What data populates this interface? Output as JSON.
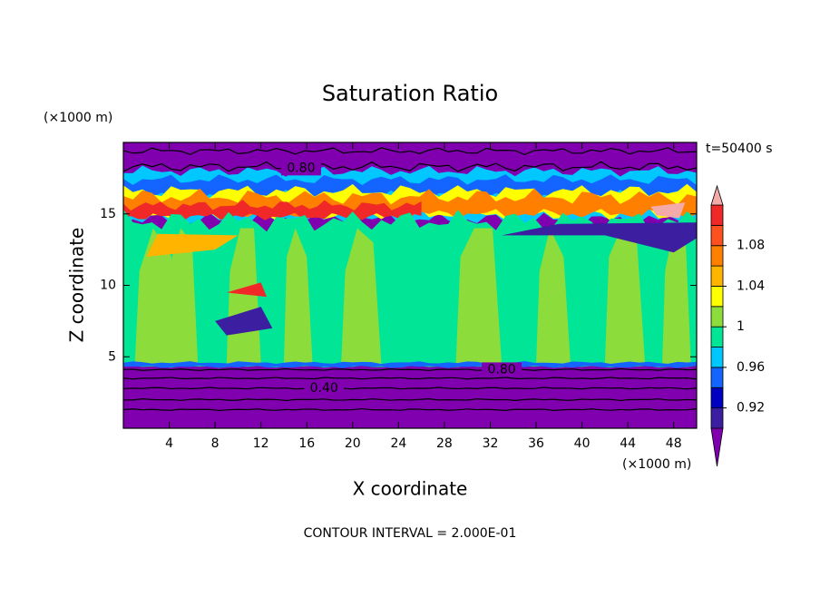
{
  "chart_data": {
    "type": "contour",
    "title": "Saturation Ratio",
    "time_label": "t=50400 s",
    "x_label": "X coordinate",
    "y_label": "Z coordinate",
    "x_unit_label": "(×1000 m)",
    "y_unit_label": "(×1000 m)",
    "footer": "CONTOUR INTERVAL = 2.000E-01",
    "xlim": [
      0,
      50
    ],
    "xticks": [
      4,
      8,
      12,
      16,
      20,
      24,
      28,
      32,
      36,
      40,
      44,
      48
    ],
    "ylim": [
      0,
      20
    ],
    "yticks": [
      5,
      10,
      15
    ],
    "contour_labels": [
      "0.80",
      "0.40",
      "0.80"
    ],
    "colorbar": {
      "levels": [
        0.9,
        0.92,
        0.94,
        0.96,
        0.98,
        1,
        1.02,
        1.04,
        1.06,
        1.08,
        1.1,
        1.12
      ],
      "ticks": [
        0.92,
        0.96,
        1,
        1.04,
        1.08
      ],
      "colors": [
        "#8000b0",
        "#3c1ea0",
        "#0000c0",
        "#1464ff",
        "#00c8ff",
        "#00e696",
        "#8cdc3c",
        "#ffff00",
        "#ffb400",
        "#ff8000",
        "#ff5020",
        "#f02828",
        "#f5aaaa"
      ]
    }
  }
}
